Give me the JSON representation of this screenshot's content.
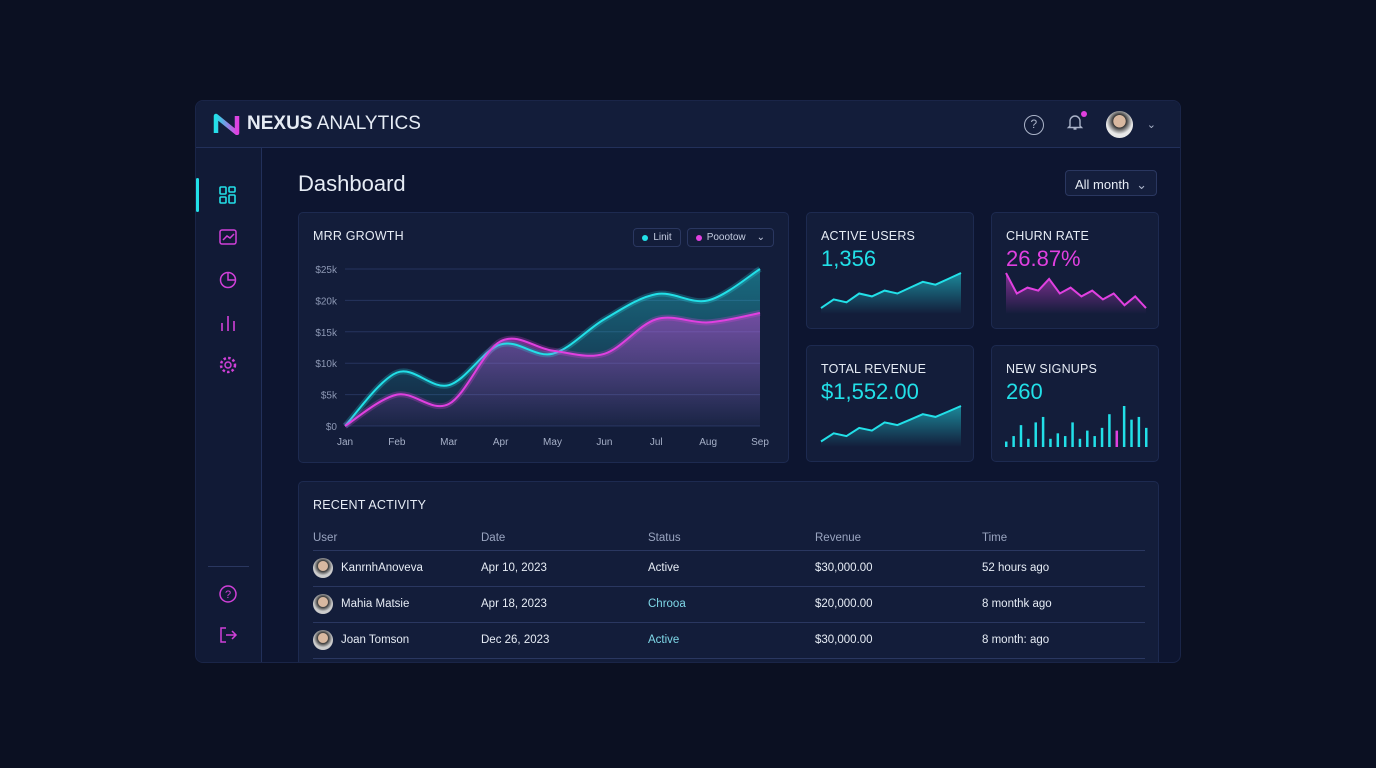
{
  "app": {
    "title_bold": "NEXUS",
    "title_rest": "ANALYTICS",
    "help_icon": "help-circle-icon",
    "notification_icon": "bell-icon"
  },
  "page": {
    "title": "Dashboard",
    "period_select": "All month"
  },
  "colors": {
    "cyan": "#22e0e8",
    "magenta": "#e040e0",
    "bg": "#0d1530"
  },
  "sidebar": {
    "items": [
      {
        "icon": "dashboard-grid-icon",
        "active": true
      },
      {
        "icon": "line-chart-icon"
      },
      {
        "icon": "pie-chart-icon"
      },
      {
        "icon": "bar-chart-icon"
      },
      {
        "icon": "settings-gear-icon"
      }
    ],
    "bottom": [
      {
        "icon": "help-icon"
      },
      {
        "icon": "logout-icon"
      }
    ]
  },
  "chart_data": {
    "type": "area",
    "title": "MRR GROWTH",
    "categories": [
      "Jan",
      "Feb",
      "Mar",
      "Apr",
      "May",
      "Jun",
      "Jul",
      "Aug",
      "Sep"
    ],
    "yticks": [
      "$0",
      "$5k",
      "$10k",
      "$15k",
      "$20k",
      "$25k"
    ],
    "ylim": [
      0,
      25
    ],
    "grid": true,
    "legend": "top-right",
    "series": [
      {
        "name": "Linit",
        "color": "#22e0e8",
        "values": [
          0,
          8.5,
          6.5,
          13,
          11.5,
          17,
          21,
          20,
          25
        ]
      },
      {
        "name": "Poootow",
        "color": "#e040e0",
        "values": [
          0,
          5,
          3.5,
          13.5,
          12,
          11.5,
          17,
          16.5,
          18
        ]
      }
    ]
  },
  "stats": [
    {
      "title": "ACTIVE USERS",
      "value": "1,356",
      "color": "#22e0e8",
      "spark": [
        2,
        5,
        4,
        7,
        6,
        8,
        7,
        9,
        11,
        10,
        12,
        14
      ],
      "kind": "area"
    },
    {
      "title": "CHURN RATE",
      "value": "26.87%",
      "color": "#e040e0",
      "spark": [
        14,
        7,
        9,
        8,
        12,
        7,
        9,
        6,
        8,
        5,
        7,
        3,
        6,
        2
      ],
      "kind": "area"
    },
    {
      "title": "TOTAL REVENUE",
      "value": "$1,552.00",
      "color": "#22e0e8",
      "spark": [
        2,
        5,
        4,
        7,
        6,
        9,
        8,
        10,
        12,
        11,
        13,
        15
      ],
      "kind": "area"
    },
    {
      "title": "NEW SIGNUPS",
      "value": "260",
      "color": "#22e0e8",
      "spark": [
        2,
        4,
        8,
        3,
        9,
        11,
        3,
        5,
        4,
        9,
        3,
        6,
        4,
        7,
        12,
        6,
        15,
        10,
        11,
        7
      ],
      "kind": "bars"
    }
  ],
  "activity": {
    "title": "RECENT ACTIVITY",
    "columns": [
      "User",
      "Date",
      "Status",
      "Revenue",
      "Time"
    ],
    "rows": [
      {
        "user": "KanrnhAnoveva",
        "date": "Apr 10, 2023",
        "status": "Active",
        "revenue": "$30,000.00",
        "time": "52 hours ago",
        "status_color": "#e6ecf5"
      },
      {
        "user": "Mahia Matsie",
        "date": "Apr 18, 2023",
        "status": "Chrooa",
        "revenue": "$20,000.00",
        "time": "8 monthk ago",
        "status_color": "#7fd8e8"
      },
      {
        "user": "Joan Tomson",
        "date": "Dec 26, 2023",
        "status": "Active",
        "revenue": "$30,000.00",
        "time": "8 month: ago",
        "status_color": "#7fd8e8"
      }
    ]
  }
}
